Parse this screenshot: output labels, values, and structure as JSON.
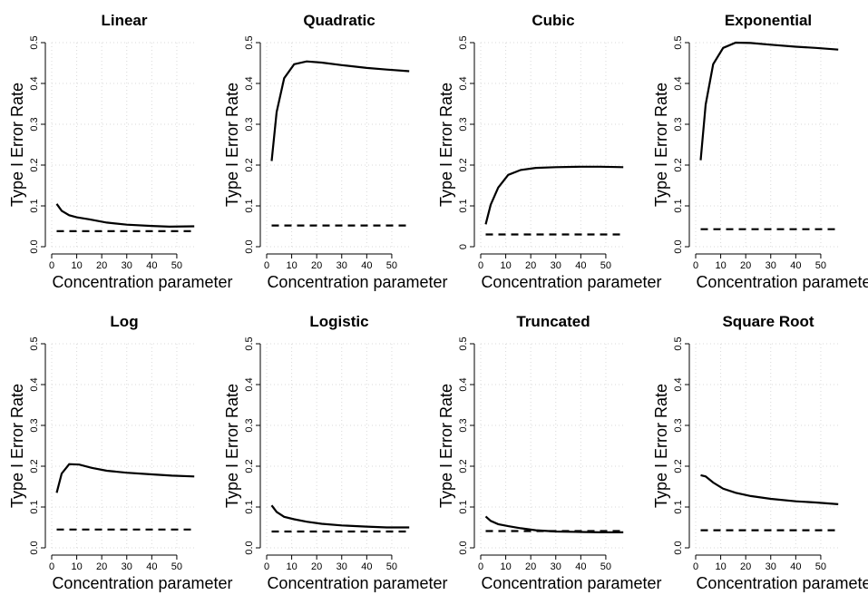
{
  "chart_data": [
    {
      "type": "line",
      "title": "Linear",
      "xlabel": "Concentration parameter",
      "ylabel": "Type I Error Rate",
      "xlim": [
        0,
        58
      ],
      "ylim": [
        0,
        0.5
      ],
      "xticks": [
        0,
        10,
        20,
        30,
        40,
        50
      ],
      "yticks": [
        0.0,
        0.1,
        0.2,
        0.3,
        0.4,
        0.5
      ],
      "ytick_labels": [
        "0.0",
        "0.1",
        "0.2",
        "0.3",
        "0.4",
        "0.5"
      ],
      "grid": true,
      "series": [
        {
          "style": "solid",
          "x": [
            2,
            4,
            7,
            10,
            15,
            22,
            30,
            40,
            47,
            57
          ],
          "y": [
            0.105,
            0.088,
            0.077,
            0.072,
            0.067,
            0.059,
            0.054,
            0.051,
            0.049,
            0.05
          ]
        },
        {
          "style": "dashed",
          "x": [
            2,
            57
          ],
          "y": [
            0.038,
            0.038
          ]
        }
      ]
    },
    {
      "type": "line",
      "title": "Quadratic",
      "xlabel": "Concentration parameter",
      "ylabel": "Type I Error Rate",
      "xlim": [
        0,
        58
      ],
      "ylim": [
        0,
        0.5
      ],
      "xticks": [
        0,
        10,
        20,
        30,
        40,
        50
      ],
      "yticks": [
        0.0,
        0.1,
        0.2,
        0.3,
        0.4,
        0.5
      ],
      "ytick_labels": [
        "0.0",
        "0.1",
        "0.2",
        "0.3",
        "0.4",
        "0.5"
      ],
      "grid": true,
      "series": [
        {
          "style": "solid",
          "x": [
            2,
            4,
            7,
            11,
            16,
            22,
            30,
            40,
            48,
            57
          ],
          "y": [
            0.21,
            0.33,
            0.413,
            0.447,
            0.454,
            0.451,
            0.445,
            0.438,
            0.434,
            0.43
          ]
        },
        {
          "style": "dashed",
          "x": [
            2,
            57
          ],
          "y": [
            0.052,
            0.052
          ]
        }
      ]
    },
    {
      "type": "line",
      "title": "Cubic",
      "xlabel": "Concentration parameter",
      "ylabel": "Type I Error Rate",
      "xlim": [
        0,
        58
      ],
      "ylim": [
        0,
        0.5
      ],
      "xticks": [
        0,
        10,
        20,
        30,
        40,
        50
      ],
      "yticks": [
        0.0,
        0.1,
        0.2,
        0.3,
        0.4,
        0.5
      ],
      "ytick_labels": [
        "0",
        "0.1",
        "0.2",
        "0.3",
        "0.4",
        "0.5"
      ],
      "grid": true,
      "series": [
        {
          "style": "solid",
          "x": [
            2,
            4,
            7,
            11,
            16,
            22,
            30,
            40,
            48,
            57
          ],
          "y": [
            0.055,
            0.103,
            0.145,
            0.176,
            0.188,
            0.193,
            0.195,
            0.196,
            0.196,
            0.195
          ]
        },
        {
          "style": "dashed",
          "x": [
            2,
            57
          ],
          "y": [
            0.03,
            0.03
          ]
        }
      ]
    },
    {
      "type": "line",
      "title": "Exponential",
      "xlabel": "Concentration parameter",
      "ylabel": "Type I Error Rate",
      "xlim": [
        0,
        58
      ],
      "ylim": [
        0,
        0.5
      ],
      "xticks": [
        0,
        10,
        20,
        30,
        40,
        50
      ],
      "yticks": [
        0.0,
        0.1,
        0.2,
        0.3,
        0.4,
        0.5
      ],
      "ytick_labels": [
        "0.0",
        "0.1",
        "0.2",
        "0.3",
        "0.4",
        "0.5"
      ],
      "grid": true,
      "series": [
        {
          "style": "solid",
          "x": [
            2,
            4,
            7,
            11,
            16,
            22,
            30,
            40,
            48,
            57
          ],
          "y": [
            0.212,
            0.348,
            0.447,
            0.487,
            0.5,
            0.499,
            0.495,
            0.49,
            0.487,
            0.483
          ]
        },
        {
          "style": "dashed",
          "x": [
            2,
            57
          ],
          "y": [
            0.043,
            0.043
          ]
        }
      ]
    },
    {
      "type": "line",
      "title": "Log",
      "xlabel": "Concentration parameter",
      "ylabel": "Type I Error Rate",
      "xlim": [
        0,
        58
      ],
      "ylim": [
        0,
        0.5
      ],
      "xticks": [
        0,
        10,
        20,
        30,
        40,
        50
      ],
      "yticks": [
        0.0,
        0.1,
        0.2,
        0.3,
        0.4,
        0.5
      ],
      "ytick_labels": [
        "0.0",
        "0.1",
        "0.2",
        "0.3",
        "0.4",
        "0.5"
      ],
      "grid": true,
      "series": [
        {
          "style": "solid",
          "x": [
            2,
            4,
            7,
            11,
            16,
            22,
            30,
            40,
            48,
            57
          ],
          "y": [
            0.135,
            0.182,
            0.205,
            0.204,
            0.196,
            0.189,
            0.184,
            0.18,
            0.177,
            0.175
          ]
        },
        {
          "style": "dashed",
          "x": [
            2,
            57
          ],
          "y": [
            0.045,
            0.045
          ]
        }
      ]
    },
    {
      "type": "line",
      "title": "Logistic",
      "xlabel": "Concentration parameter",
      "ylabel": "Type I Error Rate",
      "xlim": [
        0,
        58
      ],
      "ylim": [
        0,
        0.5
      ],
      "xticks": [
        0,
        10,
        20,
        30,
        40,
        50
      ],
      "yticks": [
        0.0,
        0.1,
        0.2,
        0.3,
        0.4,
        0.5
      ],
      "ytick_labels": [
        "0.0",
        "0.1",
        "0.2",
        "0.3",
        "0.4",
        "0.5"
      ],
      "grid": true,
      "series": [
        {
          "style": "solid",
          "x": [
            2,
            4,
            7,
            11,
            16,
            22,
            30,
            40,
            48,
            57
          ],
          "y": [
            0.104,
            0.088,
            0.076,
            0.07,
            0.064,
            0.059,
            0.055,
            0.052,
            0.05,
            0.05
          ]
        },
        {
          "style": "dashed",
          "x": [
            2,
            57
          ],
          "y": [
            0.04,
            0.04
          ]
        }
      ]
    },
    {
      "type": "line",
      "title": "Truncated",
      "xlabel": "Concentration parameter",
      "ylabel": "Type I Error Rate",
      "xlim": [
        0,
        58
      ],
      "ylim": [
        0,
        0.5
      ],
      "xticks": [
        0,
        10,
        20,
        30,
        40,
        50
      ],
      "yticks": [
        0.0,
        0.1,
        0.2,
        0.3,
        0.4,
        0.5
      ],
      "ytick_labels": [
        "0.0",
        "0.1",
        "0.2",
        "0.3",
        "0.4",
        "0.5"
      ],
      "grid": true,
      "series": [
        {
          "style": "solid",
          "x": [
            2,
            4,
            7,
            11,
            16,
            22,
            30,
            40,
            48,
            57
          ],
          "y": [
            0.077,
            0.066,
            0.058,
            0.053,
            0.048,
            0.043,
            0.04,
            0.039,
            0.038,
            0.038
          ]
        },
        {
          "style": "dashed",
          "x": [
            2,
            57
          ],
          "y": [
            0.041,
            0.041
          ]
        }
      ]
    },
    {
      "type": "line",
      "title": "Square Root",
      "xlabel": "Concentration parameter",
      "ylabel": "Type I Error Rate",
      "xlim": [
        0,
        58
      ],
      "ylim": [
        0,
        0.5
      ],
      "xticks": [
        0,
        10,
        20,
        30,
        40,
        50
      ],
      "yticks": [
        0.0,
        0.1,
        0.2,
        0.3,
        0.4,
        0.5
      ],
      "ytick_labels": [
        "0.0",
        "0.1",
        "0.2",
        "0.3",
        "0.4",
        "0.5"
      ],
      "grid": true,
      "series": [
        {
          "style": "solid",
          "x": [
            2,
            4,
            7,
            11,
            16,
            22,
            30,
            40,
            48,
            57
          ],
          "y": [
            0.178,
            0.175,
            0.16,
            0.145,
            0.135,
            0.127,
            0.12,
            0.114,
            0.111,
            0.107
          ]
        },
        {
          "style": "dashed",
          "x": [
            2,
            57
          ],
          "y": [
            0.043,
            0.043
          ]
        }
      ]
    }
  ]
}
